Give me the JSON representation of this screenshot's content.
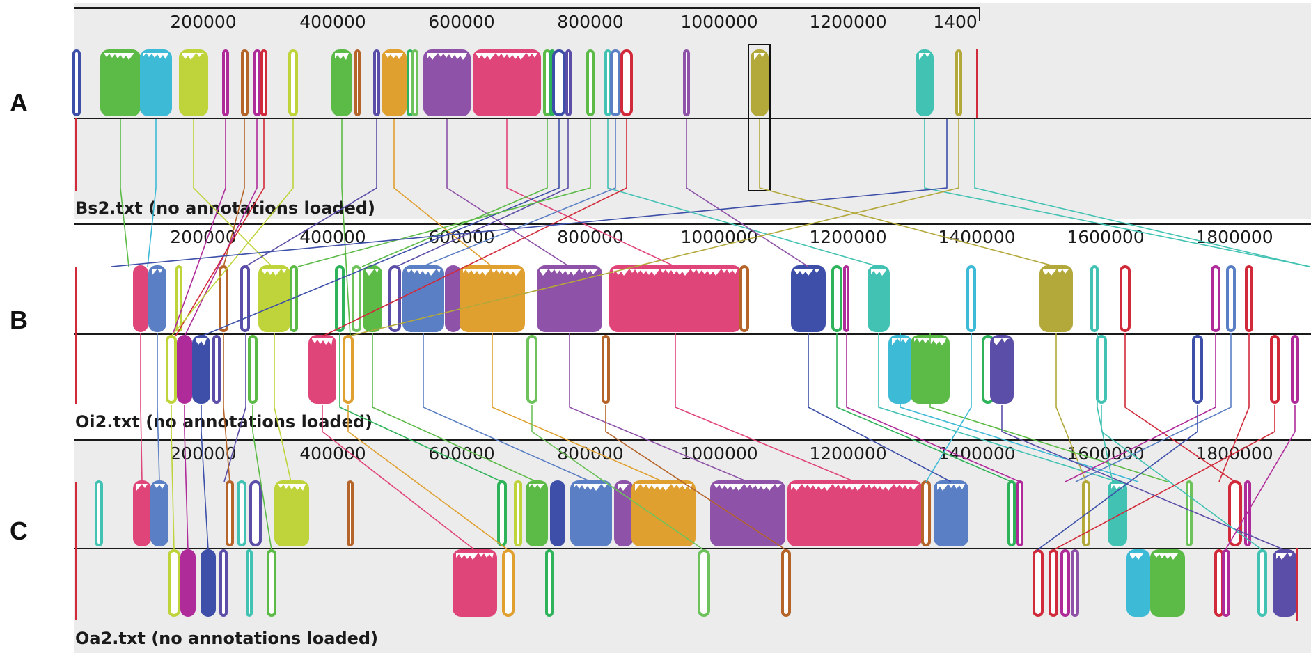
{
  "panels": [
    {
      "letter": "A",
      "genome": "Bs2.txt (no annotations loaded)",
      "ruler": [
        "200000",
        "400000",
        "600000",
        "800000",
        "1000000",
        "1200000",
        "1400"
      ]
    },
    {
      "letter": "B",
      "genome": "Oi2.txt (no annotations loaded)",
      "ruler": [
        "200000",
        "400000",
        "600000",
        "800000",
        "1000000",
        "1200000",
        "1400000",
        "1600000",
        "1800000"
      ]
    },
    {
      "letter": "C",
      "genome": "Oa2.txt (no annotations loaded)",
      "ruler": [
        "200000",
        "400000",
        "600000",
        "800000",
        "1000000",
        "1200000",
        "1400000",
        "1600000",
        "1800000"
      ]
    }
  ],
  "colors": {
    "purple": "#8e52a8",
    "pink": "#e0457a",
    "orange": "#e0a030",
    "blue": "#5b7fc4",
    "lime": "#bfd33a",
    "green": "#5cba47",
    "cyan": "#3dbad6",
    "teal": "#42c2b3",
    "darkgreen": "#2fb35a",
    "violet": "#5a4ea8",
    "red": "#d12a3a",
    "brown": "#b5642a",
    "magenta": "#b02b9a",
    "olive": "#b3a83a",
    "lightgreen": "#6dc25b",
    "navy": "#3d4fa8",
    "panel_bg": "#ececec"
  }
}
